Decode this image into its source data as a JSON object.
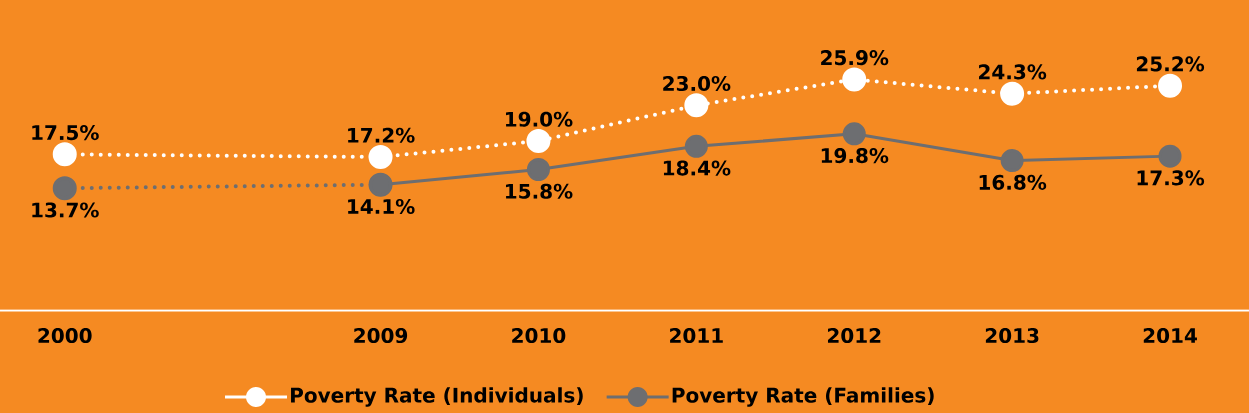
{
  "chart_data": {
    "type": "line",
    "categories": [
      "2000",
      null,
      "2009",
      "2010",
      "2011",
      "2012",
      "2013",
      "2014"
    ],
    "marker": "circle",
    "legend": "bottom",
    "grid": false,
    "series": [
      {
        "name": "Poverty Rate (Individuals)",
        "color": "#ffffff",
        "line_style": "dotted",
        "values": [
          17.5,
          null,
          17.2,
          19.0,
          23.0,
          25.9,
          24.3,
          25.2
        ],
        "value_labels": [
          "17.5%",
          null,
          "17.2%",
          "19.0%",
          "23.0%",
          "25.9%",
          "24.3%",
          "25.2%"
        ]
      },
      {
        "color": "#6d6e71",
        "line_style": "dotted",
        "values": [
          13.7,
          null,
          14.1,
          null,
          null,
          null,
          null,
          null
        ],
        "value_labels": [
          "13.7%",
          null,
          null,
          null,
          null,
          null,
          null,
          null
        ]
      },
      {
        "name": "Poverty Rate (Families)",
        "color": "#6d6e71",
        "line_style": "solid",
        "values": [
          null,
          null,
          14.1,
          15.8,
          18.4,
          19.8,
          16.8,
          17.3
        ],
        "value_labels": [
          null,
          null,
          "14.1%",
          "15.8%",
          "18.4%",
          "19.8%",
          "16.8%",
          "17.3%"
        ]
      }
    ]
  }
}
